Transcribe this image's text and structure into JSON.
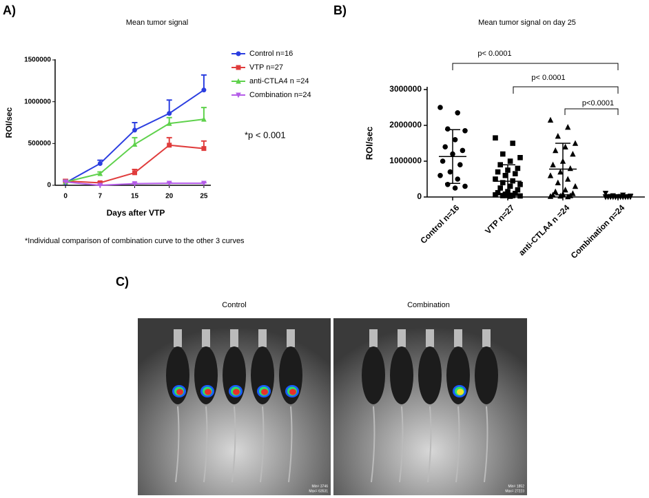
{
  "panel_labels": [
    "A)",
    "B)",
    "C)"
  ],
  "chart_data": [
    {
      "type": "line",
      "title": "Mean tumor signal",
      "x_label": "Days after VTP",
      "y_label": "ROI/sec",
      "categories": [
        "0",
        "7",
        "15",
        "20",
        "25"
      ],
      "ylim": [
        0,
        1500000
      ],
      "yticks": [
        0,
        500000,
        1000000,
        1500000
      ],
      "series": [
        {
          "name": "Control n=16",
          "color": "#2b3ee0",
          "marker": "circle",
          "values": [
            30000,
            260000,
            660000,
            860000,
            1140000
          ],
          "errors": [
            20000,
            40000,
            90000,
            160000,
            180000
          ]
        },
        {
          "name": "VTP n=27",
          "color": "#e03c3c",
          "marker": "square",
          "values": [
            50000,
            30000,
            150000,
            480000,
            440000
          ],
          "errors": [
            20000,
            10000,
            40000,
            90000,
            90000
          ]
        },
        {
          "name": "anti-CTLA4 n =24",
          "color": "#5ed14b",
          "marker": "triangle-up",
          "values": [
            40000,
            140000,
            490000,
            740000,
            790000
          ],
          "errors": [
            20000,
            20000,
            80000,
            70000,
            140000
          ]
        },
        {
          "name": "Combination n=24",
          "color": "#b45ce8",
          "marker": "triangle-down",
          "values": [
            40000,
            0,
            20000,
            25000,
            25000
          ],
          "errors": [
            10000,
            5000,
            5000,
            5000,
            5000
          ]
        }
      ],
      "annotation": "*p < 0.001",
      "note": "*Individual comparison of combination curve to the other 3 curves"
    },
    {
      "type": "dotplot",
      "title": "Mean tumor signal on day 25",
      "y_label": "ROI/sec",
      "categories": [
        "Control n=16",
        "VTP n=27",
        "anti-CTLA4 n =24",
        "Combination n=24"
      ],
      "ylim": [
        0,
        3000000
      ],
      "yticks": [
        0,
        1000000,
        2000000,
        3000000
      ],
      "color": "#000000",
      "groups": [
        {
          "marker": "circle",
          "mean": 1130000,
          "sd": 750000,
          "values": [
            2500000,
            2350000,
            1900000,
            1850000,
            1600000,
            1400000,
            1300000,
            1200000,
            1000000,
            900000,
            700000,
            600000,
            500000,
            350000,
            300000,
            250000
          ]
        },
        {
          "marker": "square",
          "mean": 440000,
          "sd": 460000,
          "values": [
            1650000,
            1500000,
            1200000,
            1100000,
            1000000,
            900000,
            800000,
            750000,
            700000,
            650000,
            600000,
            500000,
            450000,
            400000,
            350000,
            300000,
            250000,
            200000,
            150000,
            120000,
            100000,
            80000,
            60000,
            50000,
            40000,
            30000,
            20000
          ]
        },
        {
          "marker": "triangle-up",
          "mean": 780000,
          "sd": 720000,
          "values": [
            2150000,
            1950000,
            1700000,
            1500000,
            1400000,
            1300000,
            1200000,
            1000000,
            900000,
            800000,
            700000,
            600000,
            500000,
            400000,
            300000,
            200000,
            150000,
            100000,
            80000,
            60000,
            40000,
            30000,
            20000,
            10000
          ]
        },
        {
          "marker": "triangle-down",
          "mean": 10000,
          "sd": 20000,
          "values": [
            100000,
            50000,
            30000,
            20000,
            10000,
            10000,
            5000,
            5000,
            5000,
            5000,
            0,
            0,
            0,
            0,
            0,
            0,
            0,
            0,
            0,
            0,
            0,
            0,
            0,
            0
          ]
        }
      ],
      "annotations": [
        "p< 0.0001",
        "p< 0.0001",
        "p<0.0001"
      ]
    }
  ],
  "images": [
    {
      "caption": "Control",
      "scale_min": "Min= 3746",
      "scale_max": "Max= 63531"
    },
    {
      "caption": "Combination",
      "scale_min": "Min= 1852",
      "scale_max": "Max= 27223"
    }
  ]
}
